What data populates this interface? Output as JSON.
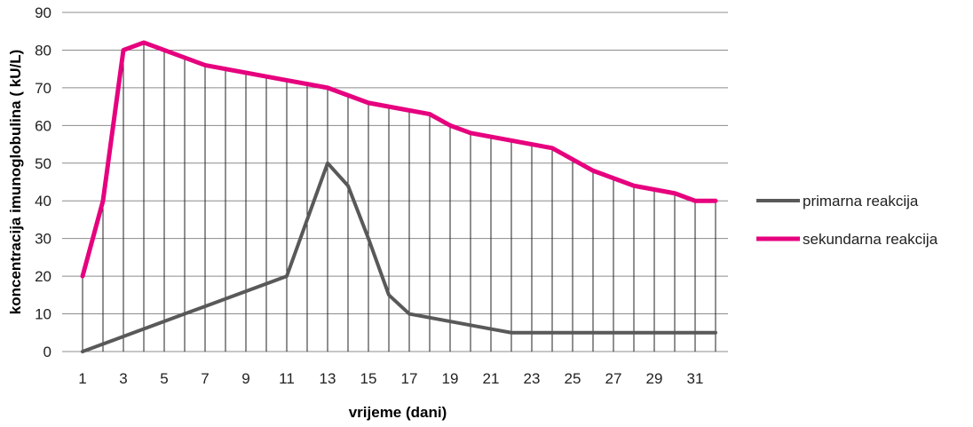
{
  "chart_data": {
    "type": "line",
    "xlabel": "vrijeme (dani)",
    "ylabel": "koncentracija imunoglobulina  ( kU/L)",
    "ylim": [
      0,
      90
    ],
    "yticks": [
      "0",
      "10",
      "20",
      "30",
      "40",
      "50",
      "60",
      "70",
      "80",
      "90"
    ],
    "x": [
      1,
      2,
      3,
      4,
      5,
      6,
      7,
      8,
      9,
      10,
      11,
      12,
      13,
      14,
      15,
      16,
      17,
      18,
      19,
      20,
      21,
      22,
      23,
      24,
      25,
      26,
      27,
      28,
      29,
      30,
      31,
      32
    ],
    "xtick_labels": [
      "1",
      "3",
      "5",
      "7",
      "9",
      "11",
      "13",
      "15",
      "17",
      "19",
      "21",
      "23",
      "25",
      "27",
      "29",
      "31"
    ],
    "grid": "horizontal and vertical",
    "legend_position": "right",
    "series": [
      {
        "name": "primarna reakcija",
        "color": "#595959",
        "values": [
          0,
          2,
          4,
          6,
          8,
          10,
          12,
          14,
          16,
          18,
          20,
          35,
          50,
          44,
          30,
          15,
          10,
          9,
          8,
          7,
          6,
          5,
          5,
          5,
          5,
          5,
          5,
          5,
          5,
          5,
          5,
          5
        ]
      },
      {
        "name": "sekundarna reakcija",
        "color": "#e6007e",
        "values": [
          20,
          40,
          80,
          82,
          80,
          78,
          76,
          75,
          74,
          73,
          72,
          71,
          70,
          68,
          66,
          65,
          64,
          63,
          60,
          58,
          57,
          56,
          55,
          54,
          51,
          48,
          46,
          44,
          43,
          42,
          40,
          40
        ]
      }
    ]
  }
}
